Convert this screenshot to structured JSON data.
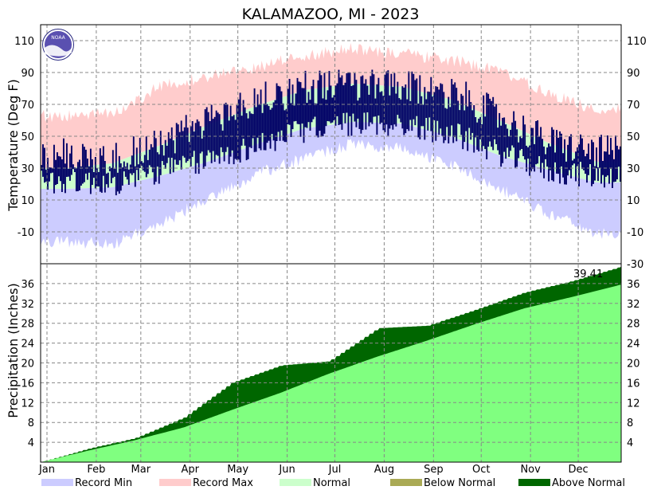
{
  "chart_data": [
    {
      "type": "area",
      "title": "KALAMAZOO, MI - 2023",
      "ylabel": "Temperature (Deg F)",
      "ylim": [
        -30,
        120
      ],
      "yticks": [
        -10,
        10,
        30,
        50,
        70,
        90,
        110
      ],
      "yticks_right": [
        -30,
        -10,
        10,
        30,
        50,
        70,
        90,
        110
      ],
      "months": [
        "Jan",
        "Feb",
        "Mar",
        "Apr",
        "May",
        "Jun",
        "Jul",
        "Aug",
        "Sep",
        "Oct",
        "Nov",
        "Dec"
      ],
      "grid": true,
      "series": [
        {
          "name": "Record Min",
          "month_values": [
            -15,
            -17,
            -5,
            12,
            27,
            37,
            46,
            43,
            33,
            18,
            2,
            -10
          ]
        },
        {
          "name": "Record Max",
          "month_values": [
            62,
            63,
            80,
            87,
            92,
            100,
            104,
            101,
            97,
            90,
            76,
            66
          ]
        },
        {
          "name": "Normal",
          "note": "normal low/high band",
          "normal_low": [
            17,
            18,
            25,
            34,
            45,
            55,
            59,
            58,
            50,
            38,
            29,
            21
          ],
          "normal_high": [
            30,
            33,
            44,
            57,
            69,
            79,
            83,
            81,
            73,
            60,
            46,
            34
          ]
        },
        {
          "name": "Observed",
          "observed_low_monthly": [
            22,
            20,
            28,
            35,
            44,
            54,
            58,
            57,
            52,
            39,
            28,
            25
          ],
          "observed_high_monthly": [
            38,
            36,
            45,
            60,
            72,
            81,
            82,
            80,
            78,
            62,
            46,
            40
          ]
        }
      ]
    },
    {
      "type": "area",
      "ylabel": "Precipitation (Inches)",
      "ylim": [
        0,
        40
      ],
      "yticks": [
        4,
        8,
        12,
        16,
        20,
        24,
        28,
        32,
        36
      ],
      "annotation": "39.41",
      "series": [
        {
          "name": "Normal",
          "cumulative_month_end": [
            2.4,
            4.4,
            7.0,
            10.5,
            14.0,
            17.8,
            21.3,
            24.5,
            27.8,
            31.0,
            33.3,
            35.8
          ]
        },
        {
          "name": "Observed",
          "cumulative_month_end": [
            2.8,
            4.8,
            9.0,
            16.0,
            19.5,
            20.3,
            27.0,
            27.5,
            30.7,
            34.2,
            36.5,
            39.41
          ]
        }
      ]
    }
  ],
  "legend": [
    {
      "label": "Record Min",
      "color": "#ccccff"
    },
    {
      "label": "Record Max",
      "color": "#ffcccc"
    },
    {
      "label": "Normal",
      "color": "#ccffcc"
    },
    {
      "label": "Below Normal",
      "color": "#aaaa55"
    },
    {
      "label": "Above Normal",
      "color": "#006600"
    }
  ],
  "colors": {
    "record_min": "#ccccff",
    "record_max": "#ffcccc",
    "normal_band": "#ccffcc",
    "observed": "#000066",
    "precip_normal": "#80ff80",
    "precip_above": "#006600"
  },
  "logo_text": "NOAA"
}
